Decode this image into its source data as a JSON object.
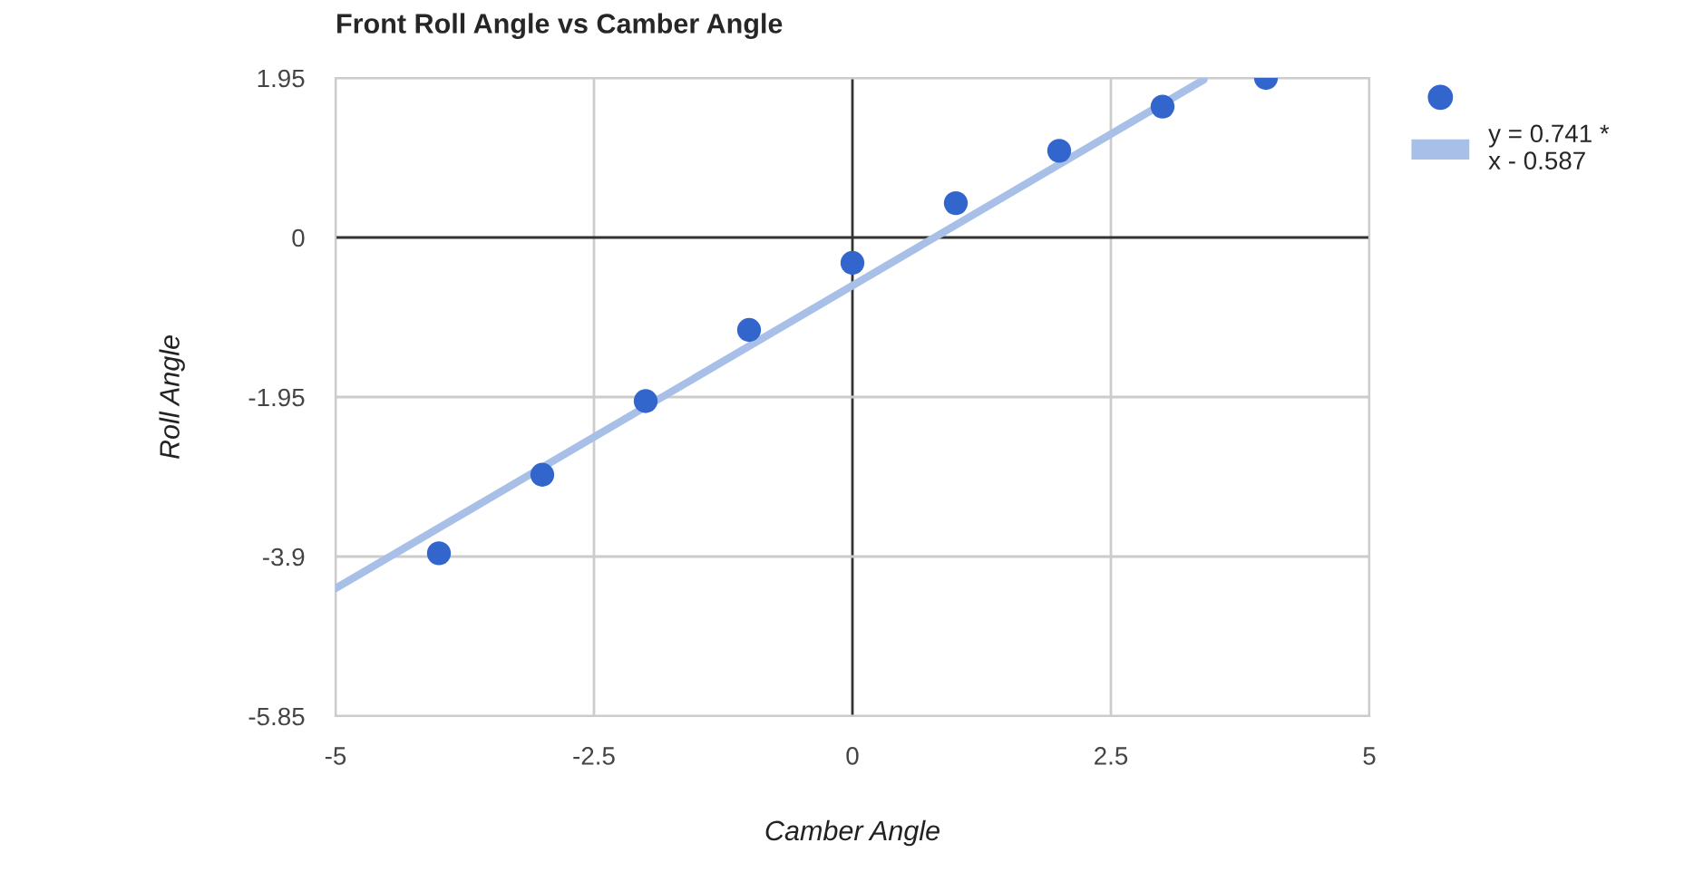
{
  "chart_data": {
    "type": "scatter",
    "title": "Front Roll Angle vs Camber Angle",
    "xlabel": "Camber Angle",
    "ylabel": "Roll Angle",
    "series": [
      {
        "marker": "circle",
        "color": "#3366cc",
        "x": [
          -4,
          -3,
          -2,
          -1,
          0,
          1,
          2,
          3,
          4
        ],
        "values": [
          -3.86,
          -2.9,
          -2.0,
          -1.13,
          -0.31,
          0.42,
          1.06,
          1.6,
          1.95
        ]
      },
      {
        "type": "line",
        "name": "y = 0.741 * x - 0.587",
        "color": "#a8c0e8",
        "x": [
          -5,
          3.4
        ],
        "values": [
          -4.29,
          1.93
        ]
      }
    ],
    "xlim": [
      -5,
      5
    ],
    "xticks": [
      -5,
      -2.5,
      0,
      2.5,
      5
    ],
    "ylim": [
      -5.85,
      1.95
    ],
    "yticks": [
      -5.85,
      -3.9,
      -1.95,
      0,
      1.95
    ],
    "grid": true,
    "legend": "right"
  }
}
